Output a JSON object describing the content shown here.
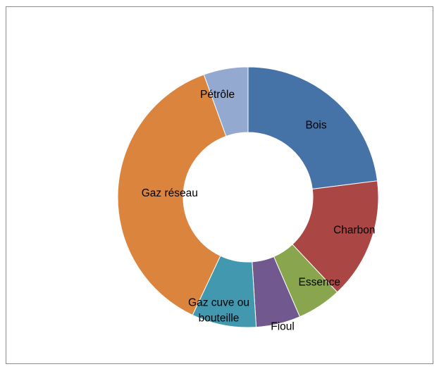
{
  "chart_data": {
    "type": "pie",
    "variant": "doughnut",
    "title": "",
    "categories": [
      "Bois",
      "Charbon",
      "Essence",
      "Fioul",
      "Gaz cuve ou bouteille",
      "Gaz réseau",
      "Pétrôle"
    ],
    "values": [
      23.0,
      15.0,
      5.5,
      5.5,
      8.0,
      37.5,
      5.5
    ],
    "colors": [
      "#4572A7",
      "#AA4643",
      "#89A54E",
      "#71588F",
      "#4198AF",
      "#DB843D",
      "#93A9CF"
    ],
    "labels": [
      [
        "Bois"
      ],
      [
        "Charbon"
      ],
      [
        "Essence"
      ],
      [
        "Fioul"
      ],
      [
        "Gaz cuve ou",
        "bouteille"
      ],
      [
        "Gaz réseau"
      ],
      [
        "Pétrôle"
      ]
    ],
    "legend": "none",
    "start": "top, clockwise"
  }
}
